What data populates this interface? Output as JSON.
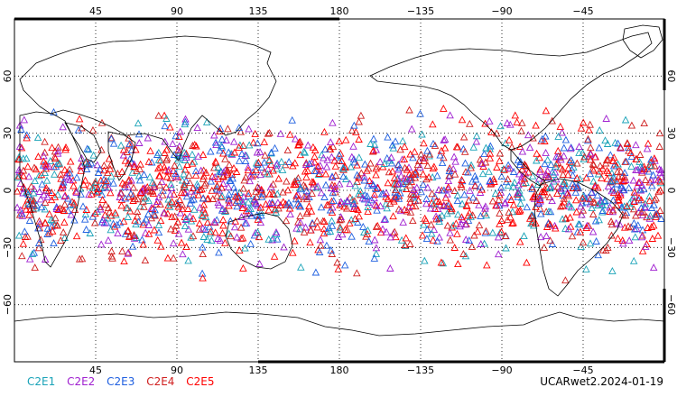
{
  "map": {
    "projection": "cylindrical equidistant, centered 180",
    "lon_range": [
      0,
      360
    ],
    "lat_range": [
      -90,
      90
    ],
    "lon_ticks": [
      {
        "lon": 45,
        "label": "45"
      },
      {
        "lon": 90,
        "label": "90"
      },
      {
        "lon": 135,
        "label": "135"
      },
      {
        "lon": 180,
        "label": "180"
      },
      {
        "lon": 225,
        "label": "−135"
      },
      {
        "lon": 270,
        "label": "−90"
      },
      {
        "lon": 315,
        "label": "−45"
      }
    ],
    "lat_ticks": [
      {
        "lat": 60,
        "label": "60"
      },
      {
        "lat": 30,
        "label": "30"
      },
      {
        "lat": 0,
        "label": "0"
      },
      {
        "lat": -30,
        "label": "−30"
      },
      {
        "lat": -60,
        "label": "−60"
      }
    ],
    "grid": "dotted",
    "marker": "open-triangle",
    "observation_band_lat": [
      -50,
      50
    ]
  },
  "legend": [
    {
      "label": "C2E1",
      "color": "#1aa3b8"
    },
    {
      "label": "C2E2",
      "color": "#a020d0"
    },
    {
      "label": "C2E3",
      "color": "#2060e0"
    },
    {
      "label": "C2E4",
      "color": "#d02020"
    },
    {
      "label": "C2E5",
      "color": "#ff0000"
    }
  ],
  "footer": "UCARwet2.2024-01-19"
}
